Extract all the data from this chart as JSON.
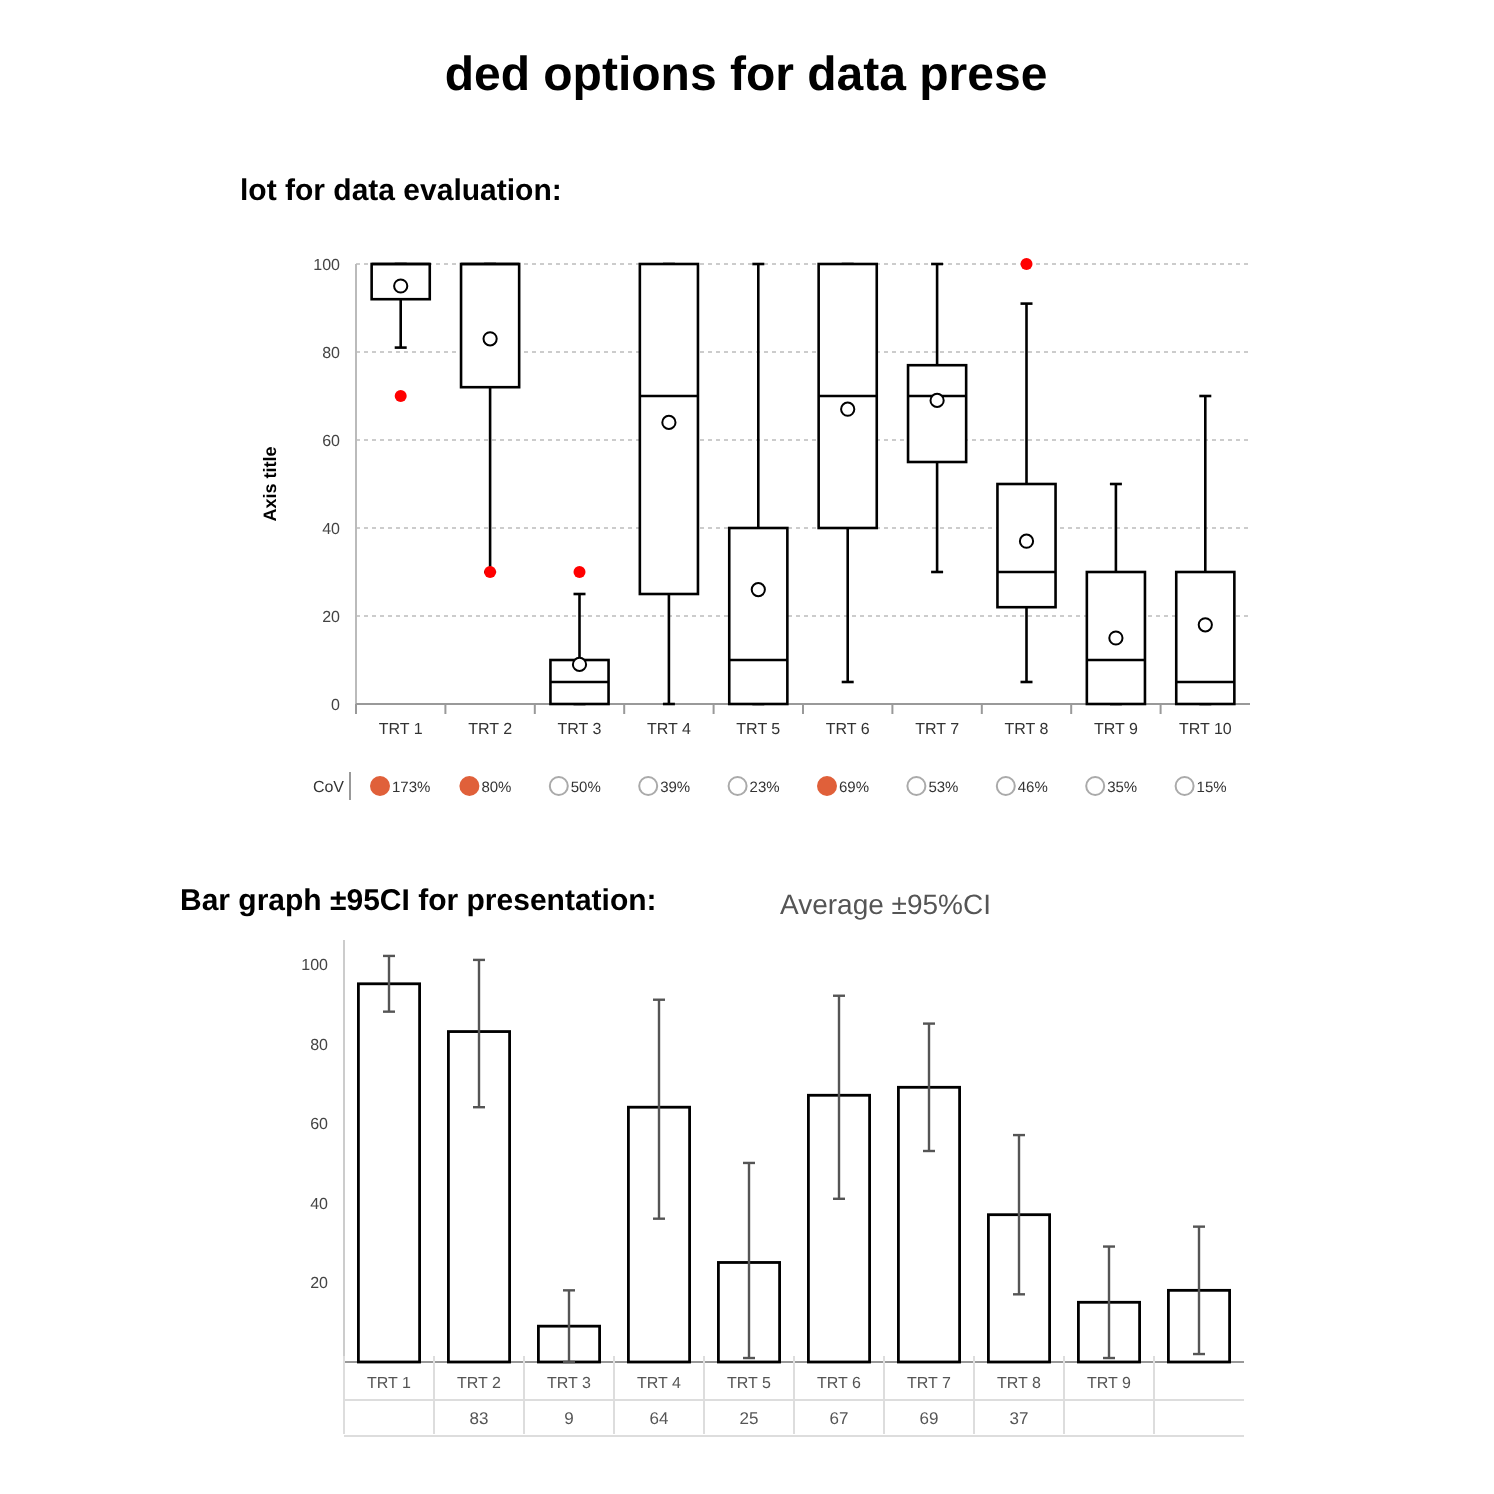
{
  "chart_data": [
    {
      "type": "box",
      "title": "ded options for data prese",
      "subtitle": "lot for data evaluation:",
      "ylabel": "Axis title",
      "categories": [
        "TRT 1",
        "TRT 2",
        "TRT 3",
        "TRT 4",
        "TRT 5",
        "TRT 6",
        "TRT 7",
        "TRT 8",
        "TRT 9",
        "TRT 10"
      ],
      "ylim": [
        0,
        100
      ],
      "yticks": [
        0,
        20,
        40,
        60,
        80,
        100
      ],
      "grid": "y",
      "color": "#000000",
      "boxes": [
        {
          "low": 81,
          "q1": 92,
          "median": 100,
          "q3": 100,
          "high": 100,
          "mean": 95,
          "outliers": [
            70
          ]
        },
        {
          "low": 30,
          "q1": 72,
          "median": 100,
          "q3": 100,
          "high": 100,
          "mean": 83,
          "outliers": [
            30
          ]
        },
        {
          "low": 0,
          "q1": 0,
          "median": 5,
          "q3": 10,
          "high": 25,
          "mean": 9,
          "outliers": [
            30
          ]
        },
        {
          "low": 0,
          "q1": 25,
          "median": 70,
          "q3": 100,
          "high": 100,
          "mean": 64
        },
        {
          "low": 0,
          "q1": 0,
          "median": 10,
          "q3": 40,
          "high": 100,
          "mean": 26
        },
        {
          "low": 5,
          "q1": 40,
          "median": 70,
          "q3": 100,
          "high": 100,
          "mean": 67
        },
        {
          "low": 30,
          "q1": 55,
          "median": 70,
          "q3": 77,
          "high": 100,
          "mean": 69
        },
        {
          "low": 5,
          "q1": 22,
          "median": 30,
          "q3": 50,
          "high": 91,
          "mean": 37,
          "outliers": [
            100
          ]
        },
        {
          "low": 0,
          "q1": 0,
          "median": 10,
          "q3": 30,
          "high": 50,
          "mean": 15
        },
        {
          "low": 0,
          "q1": 0,
          "median": 5,
          "q3": 30,
          "high": 70,
          "mean": 18
        }
      ]
    },
    {
      "type": "other",
      "title": "CoV",
      "categories": [
        null,
        null,
        null,
        null,
        null,
        null,
        null,
        null,
        null,
        null
      ],
      "values": [
        173,
        80,
        50,
        39,
        23,
        69,
        53,
        46,
        35,
        15
      ],
      "value_labels": [
        "173%",
        "80%",
        "50%",
        "39%",
        "23%",
        "69%",
        "53%",
        "46%",
        "35%",
        "15%"
      ],
      "colors": [
        "#e0603a",
        "#e0603a",
        "#ffffff",
        "#ffffff",
        "#ffffff",
        "#e0603a",
        "#ffffff",
        "#ffffff",
        "#ffffff",
        "#ffffff"
      ]
    },
    {
      "type": "bar",
      "title": "Bar graph ±95CI for presentation:",
      "subtitle": "Average ±95%CI",
      "categories": [
        "TRT 1",
        "TRT 2",
        "TRT 3",
        "TRT 4",
        "TRT 5",
        "TRT 6",
        "TRT 7",
        "TRT 8",
        "TRT 9",
        null
      ],
      "values": [
        95,
        83,
        9,
        64,
        25,
        67,
        69,
        37,
        15,
        18
      ],
      "color": "#ffffff",
      "errors": [
        [
          88,
          102
        ],
        [
          64,
          101
        ],
        [
          0,
          18
        ],
        [
          36,
          91
        ],
        [
          1,
          50
        ],
        [
          41,
          92
        ],
        [
          53,
          85
        ],
        [
          17,
          57
        ],
        [
          1,
          29
        ],
        [
          2,
          34
        ]
      ],
      "value_labels": [
        null,
        "83",
        "9",
        "64",
        "25",
        "67",
        "69",
        "37",
        null,
        null
      ],
      "ylim": [
        0,
        106
      ],
      "yticks": [
        20,
        40,
        60,
        80,
        100
      ]
    }
  ]
}
